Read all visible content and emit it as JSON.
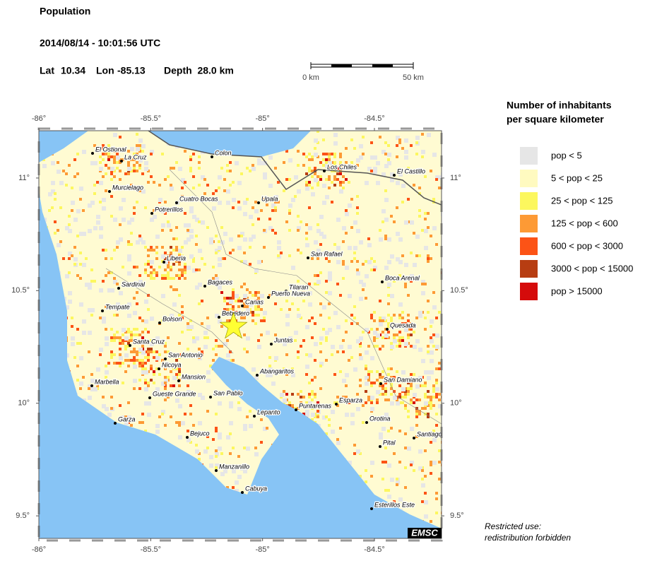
{
  "header": {
    "title": "Population",
    "datetime": "2014/08/14 - 10:01:56 UTC",
    "lat": {
      "label": "Lat",
      "value": 10.34
    },
    "lon": {
      "label": "Lon",
      "value": -85.13
    },
    "depth": "Depth  28.0 km"
  },
  "scale_bar": {
    "start": "0 km",
    "end": "50 km"
  },
  "map": {
    "xlim": [
      -86.0,
      -84.2
    ],
    "ylim": [
      9.4,
      11.21
    ],
    "xticks": [
      {
        "value": -86,
        "label": "-86°"
      },
      {
        "value": -85.5,
        "label": "-85.5°"
      },
      {
        "value": -85,
        "label": "-85°"
      },
      {
        "value": -84.5,
        "label": "-84.5°"
      }
    ],
    "yticks": [
      {
        "value": 11,
        "label": "11°"
      },
      {
        "value": 10.5,
        "label": "10.5°"
      },
      {
        "value": 10,
        "label": "10°"
      },
      {
        "value": 9.5,
        "label": "9.5°"
      }
    ],
    "cities": [
      "El Ostional",
      "La Cruz",
      "Colon",
      "Los Chiles",
      "El Castillo",
      "Murcielago",
      "Cuatro Bocas",
      "Upala",
      "Potrerillos",
      "San Rafael",
      "Liberia",
      "Boca Arenal",
      "Sardinal",
      "Bagaces",
      "Tilaran",
      "Puerto Nueva",
      "Canas",
      "Tempate",
      "Bebedero",
      "Bolson",
      "Quesada",
      "Juntas",
      "Santa Cruz",
      "San Antonio",
      "Nicoya",
      "Abangaritos",
      "Mansion",
      "Marbella",
      "San Damiano",
      "Gueste Grande",
      "San Pablo",
      "Esparza",
      "Puntarenas",
      "Lepanto",
      "Garza",
      "Orotina",
      "Santiago",
      "Bejuco",
      "Pital",
      "Manzanillo",
      "Cabuya",
      "Esterillos Este"
    ],
    "badge": "EMSC"
  },
  "legend": {
    "title": [
      "Number of inhabitants",
      "per square kilometer"
    ],
    "items": [
      {
        "label": "pop < 5",
        "color": "#e6e6e6"
      },
      {
        "label": "5 < pop < 25",
        "color": "#fffac0"
      },
      {
        "label": "25 < pop < 125",
        "color": "#fcf75e"
      },
      {
        "label": "125 < pop < 600",
        "color": "#fd9a35"
      },
      {
        "label": "600 < pop < 3000",
        "color": "#fc5316"
      },
      {
        "label": "3000 < pop < 15000",
        "color": "#b73d12"
      },
      {
        "label": "pop > 15000",
        "color": "#d50b0b"
      }
    ]
  },
  "notice": [
    "Restricted use:",
    "redistribution forbidden"
  ]
}
